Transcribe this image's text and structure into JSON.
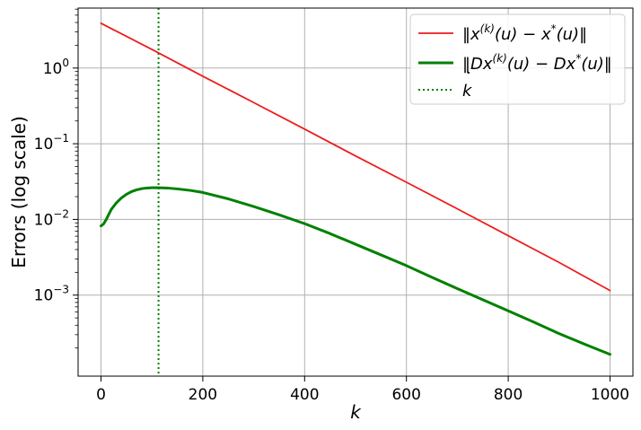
{
  "chart_data": {
    "type": "line",
    "xlabel": "k",
    "ylabel": "Errors (log scale)",
    "y_scale": "log",
    "xlim": [
      -45,
      1045
    ],
    "ylim": [
      8.5e-05,
      6.2
    ],
    "grid": true,
    "legend_position": "top-right",
    "x_ticks": [
      0,
      200,
      400,
      600,
      800,
      1000
    ],
    "x_tick_labels": [
      "0",
      "200",
      "400",
      "600",
      "800",
      "1000"
    ],
    "y_ticks": [
      1,
      0.1,
      0.01,
      0.001
    ],
    "y_tick_labels": [
      {
        "base": "10",
        "exp": "0"
      },
      {
        "base": "10",
        "exp": "−1"
      },
      {
        "base": "10",
        "exp": "−2"
      },
      {
        "base": "10",
        "exp": "−3"
      }
    ],
    "series": [
      {
        "name": "‖x(k)(u) − x*(u)‖",
        "color": "#ee1c1c",
        "style": "solid",
        "x": [
          0,
          100,
          200,
          300,
          400,
          500,
          600,
          700,
          800,
          900,
          1000
        ],
        "y": [
          3.9,
          1.76,
          0.78,
          0.35,
          0.156,
          0.069,
          0.031,
          0.0138,
          0.0061,
          0.0027,
          0.00115
        ]
      },
      {
        "name": "‖Dx(k)(u) − Dx*(u)‖",
        "color": "#008000",
        "style": "solid",
        "x": [
          0,
          5,
          10,
          20,
          30,
          40,
          50,
          60,
          70,
          80,
          90,
          100,
          113,
          130,
          150,
          175,
          200,
          250,
          300,
          350,
          400,
          450,
          500,
          550,
          600,
          650,
          700,
          750,
          800,
          850,
          900,
          950,
          1000
        ],
        "y": [
          0.0082,
          0.0087,
          0.0099,
          0.0135,
          0.0165,
          0.0192,
          0.0215,
          0.0233,
          0.0246,
          0.0255,
          0.026,
          0.0262,
          0.0262,
          0.026,
          0.0253,
          0.0242,
          0.0227,
          0.0187,
          0.0148,
          0.0115,
          0.0088,
          0.0065,
          0.0047,
          0.0034,
          0.00245,
          0.00172,
          0.00122,
          0.00087,
          0.00062,
          0.00044,
          0.00031,
          0.000225,
          0.000165
        ]
      }
    ],
    "vline": {
      "x": 113,
      "color": "#008000",
      "style": "dotted",
      "label": "k"
    },
    "legend": [
      {
        "line": "red-solid",
        "pre": "‖x",
        "sup1": "(k)",
        "mid": "(u) − x",
        "sup2": "*",
        "post": "(u)‖"
      },
      {
        "line": "green-solid",
        "pre": "‖Dx",
        "sup1": "(k)",
        "mid": "(u) − Dx",
        "sup2": "*",
        "post": "(u)‖"
      },
      {
        "line": "green-dotted",
        "pre": "k",
        "accent": "˙"
      }
    ]
  }
}
